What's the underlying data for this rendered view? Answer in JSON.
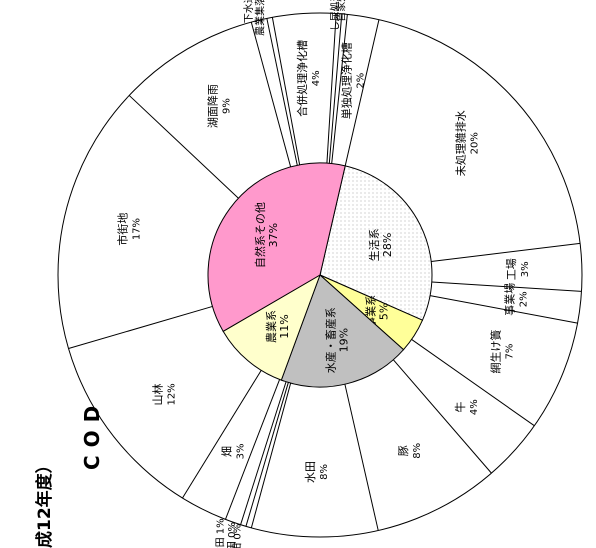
{
  "title": "成12年度）",
  "subtitle": "COD",
  "chart_data": {
    "type": "pie",
    "unit": "%",
    "inner": [
      {
        "label": "生活系",
        "value": 28,
        "color": "#ffffff",
        "pattern": "dots"
      },
      {
        "label": "事業系",
        "value": 5,
        "color": "#ffff99"
      },
      {
        "label": "水産・畜産系",
        "value": 19,
        "color": "#c0c0c0"
      },
      {
        "label": "農業系",
        "value": 11,
        "color": "#ffffcc"
      },
      {
        "label": "自然系その他",
        "value": 37,
        "color": "#ff99cc"
      }
    ],
    "outer": [
      {
        "label": "未処理雑排水",
        "value": 20,
        "group": 0
      },
      {
        "label": "工場",
        "value": 3,
        "group": 1
      },
      {
        "label": "事業場",
        "value": 2,
        "group": 1
      },
      {
        "label": "網生け簀",
        "value": 7,
        "group": 2
      },
      {
        "label": "牛",
        "value": 4,
        "group": 2
      },
      {
        "label": "豚",
        "value": 8,
        "group": 2
      },
      {
        "label": "水田",
        "value": 8,
        "group": 3
      },
      {
        "label": "ハス田",
        "value": 0,
        "group": 3
      },
      {
        "label": "転作田",
        "value": 0,
        "group": 3
      },
      {
        "label": "作付田",
        "value": 1,
        "group": 3
      },
      {
        "label": "畑",
        "value": 3,
        "group": 3
      },
      {
        "label": "山林",
        "value": 12,
        "group": 4
      },
      {
        "label": "市街地",
        "value": 17,
        "group": 4
      },
      {
        "label": "湖面降雨",
        "value": 9,
        "group": 4
      },
      {
        "label": "下水道",
        "value": 1,
        "group": 0
      },
      {
        "label": "農業集落排水",
        "value": 0,
        "group": 0
      },
      {
        "label": "合併処理浄化槽",
        "value": 4,
        "group": 0
      },
      {
        "label": "し尿処理施設",
        "value": 0,
        "group": 0
      },
      {
        "label": "自家処理",
        "value": 0,
        "group": 0
      },
      {
        "label": "単独処理浄化槽",
        "value": 2,
        "group": 0
      }
    ]
  }
}
